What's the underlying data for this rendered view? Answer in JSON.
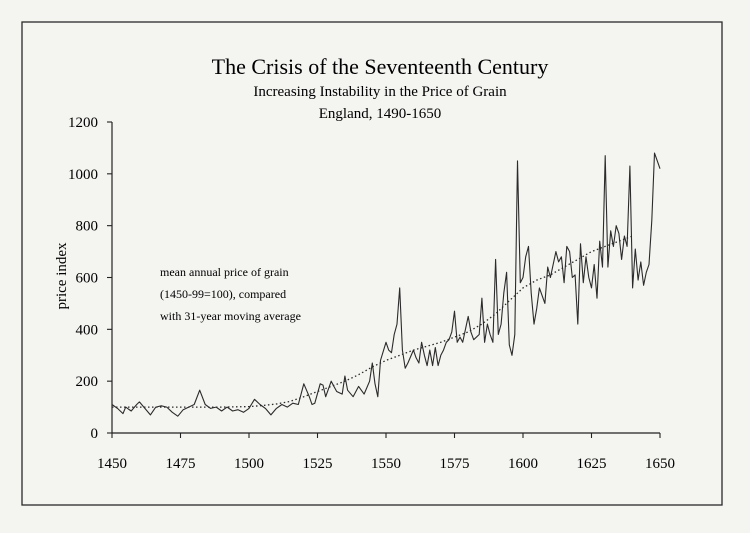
{
  "chart_data": {
    "type": "line",
    "title": "The Crisis of the Seventeenth Century",
    "subtitle": [
      "Increasing Instability in the Price of Grain",
      "England, 1490-1650"
    ],
    "xlabel": "",
    "ylabel": "price index",
    "xlim": [
      1450,
      1650
    ],
    "ylim": [
      0,
      1200
    ],
    "x_ticks": [
      1450,
      1475,
      1500,
      1525,
      1550,
      1575,
      1600,
      1625,
      1650
    ],
    "y_ticks": [
      0,
      200,
      400,
      600,
      800,
      1000,
      1200
    ],
    "annotation": [
      "mean annual price of grain",
      "(1450-99=100), compared",
      "with 31-year moving average"
    ],
    "series": [
      {
        "style": "solid",
        "x": [
          1450,
          1452,
          1454,
          1455,
          1457,
          1459,
          1460,
          1462,
          1464,
          1466,
          1468,
          1470,
          1472,
          1474,
          1476,
          1478,
          1480,
          1482,
          1484,
          1486,
          1488,
          1490,
          1492,
          1494,
          1496,
          1498,
          1500,
          1502,
          1504,
          1506,
          1508,
          1510,
          1512,
          1514,
          1516,
          1518,
          1520,
          1522,
          1523,
          1524,
          1526,
          1527,
          1528,
          1530,
          1531,
          1532,
          1534,
          1535,
          1536,
          1538,
          1540,
          1542,
          1544,
          1545,
          1546,
          1547,
          1548,
          1550,
          1551,
          1552,
          1553,
          1554,
          1555,
          1556,
          1557,
          1558,
          1560,
          1561,
          1562,
          1563,
          1564,
          1565,
          1566,
          1567,
          1568,
          1569,
          1570,
          1571,
          1572,
          1573,
          1574,
          1575,
          1576,
          1577,
          1578,
          1580,
          1581,
          1582,
          1584,
          1585,
          1586,
          1587,
          1588,
          1589,
          1590,
          1591,
          1592,
          1593,
          1594,
          1595,
          1596,
          1597,
          1598,
          1599,
          1600,
          1601,
          1602,
          1603,
          1604,
          1605,
          1606,
          1608,
          1609,
          1610,
          1612,
          1613,
          1614,
          1615,
          1616,
          1617,
          1618,
          1619,
          1620,
          1621,
          1622,
          1623,
          1624,
          1625,
          1626,
          1627,
          1628,
          1629,
          1630,
          1631,
          1632,
          1633,
          1634,
          1635,
          1636,
          1637,
          1638,
          1639,
          1640,
          1641,
          1642,
          1643,
          1644,
          1645,
          1646,
          1647,
          1648,
          1649,
          1650
        ],
        "y": [
          110,
          95,
          75,
          100,
          85,
          110,
          120,
          95,
          70,
          100,
          105,
          100,
          80,
          65,
          90,
          100,
          110,
          165,
          110,
          95,
          100,
          85,
          100,
          85,
          90,
          80,
          95,
          130,
          110,
          95,
          70,
          95,
          110,
          100,
          115,
          110,
          190,
          140,
          110,
          115,
          190,
          185,
          140,
          200,
          180,
          160,
          150,
          220,
          165,
          140,
          180,
          150,
          200,
          270,
          190,
          140,
          280,
          350,
          320,
          310,
          380,
          420,
          560,
          320,
          250,
          270,
          320,
          290,
          270,
          350,
          300,
          260,
          320,
          260,
          330,
          260,
          300,
          320,
          350,
          360,
          390,
          470,
          350,
          370,
          350,
          450,
          390,
          360,
          380,
          520,
          350,
          420,
          380,
          350,
          670,
          380,
          420,
          540,
          620,
          340,
          300,
          380,
          1050,
          580,
          600,
          680,
          720,
          540,
          420,
          480,
          560,
          500,
          640,
          600,
          700,
          660,
          680,
          580,
          720,
          700,
          600,
          610,
          420,
          730,
          580,
          680,
          600,
          560,
          650,
          520,
          740,
          640,
          1070,
          640,
          780,
          720,
          800,
          770,
          670,
          760,
          720,
          1030,
          560,
          710,
          590,
          660,
          570,
          620,
          650,
          820,
          1080,
          1050,
          1020
        ]
      },
      {
        "style": "dotted",
        "x": [
          1450,
          1460,
          1470,
          1480,
          1490,
          1500,
          1505,
          1510,
          1515,
          1520,
          1525,
          1530,
          1535,
          1540,
          1545,
          1550,
          1555,
          1560,
          1565,
          1570,
          1575,
          1580,
          1585,
          1590,
          1595,
          1600,
          1605,
          1610,
          1615,
          1620,
          1625,
          1630,
          1635,
          1640
        ],
        "y": [
          100,
          100,
          100,
          100,
          100,
          102,
          106,
          112,
          122,
          140,
          160,
          180,
          200,
          225,
          255,
          280,
          300,
          320,
          335,
          350,
          370,
          390,
          420,
          460,
          510,
          560,
          590,
          610,
          640,
          670,
          700,
          720,
          740,
          760
        ]
      }
    ]
  }
}
